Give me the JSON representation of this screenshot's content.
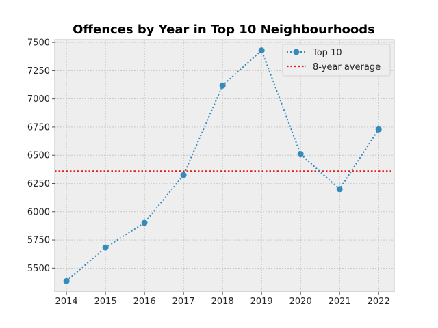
{
  "chart_data": {
    "type": "line",
    "title": "Offences by Year in Top 10 Neighbourhoods",
    "xlabel": "",
    "ylabel": "",
    "x": [
      2014,
      2015,
      2016,
      2017,
      2018,
      2019,
      2020,
      2021,
      2022
    ],
    "series": [
      {
        "name": "Top 10",
        "values": [
          5385,
          5683,
          5902,
          6325,
          7118,
          7430,
          6510,
          6200,
          6730
        ],
        "color": "#348abd",
        "style": "dotted",
        "marker": "circle"
      }
    ],
    "reference_lines": [
      {
        "name": "8-year average",
        "value": 6360,
        "color": "#e41a1c",
        "style": "dotted"
      }
    ],
    "yticks": [
      5500,
      5750,
      6000,
      6250,
      6500,
      6750,
      7000,
      7250,
      7500
    ],
    "xticks": [
      2014,
      2015,
      2016,
      2017,
      2018,
      2019,
      2020,
      2021,
      2022
    ],
    "xlim": [
      2013.7,
      2022.4
    ],
    "ylim": [
      5290,
      7525
    ],
    "grid": true,
    "legend_position": "top-right",
    "background": "#eeeeee"
  }
}
